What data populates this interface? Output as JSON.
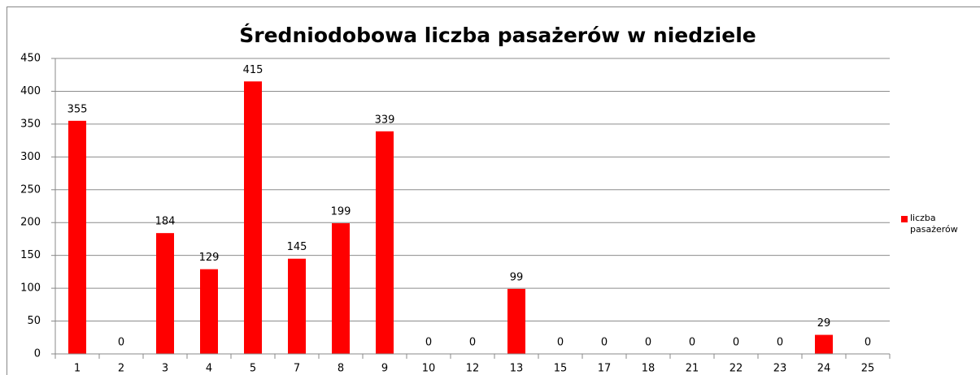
{
  "chart_data": {
    "type": "bar",
    "title": "Średniodobowa liczba pasażerów w niedziele",
    "categories": [
      "1",
      "2",
      "3",
      "4",
      "5",
      "7",
      "8",
      "9",
      "10",
      "12",
      "13",
      "15",
      "17",
      "18",
      "21",
      "22",
      "23",
      "24",
      "25"
    ],
    "series": [
      {
        "name": "liczba pasażerów",
        "color": "#ff0000",
        "values": [
          355,
          0,
          184,
          129,
          415,
          145,
          199,
          339,
          0,
          0,
          99,
          0,
          0,
          0,
          0,
          0,
          0,
          29,
          0
        ]
      }
    ],
    "ylim": [
      0,
      450
    ],
    "yticks": [
      0,
      50,
      100,
      150,
      200,
      250,
      300,
      350,
      400,
      450
    ],
    "grid": true,
    "legend": "right",
    "data_labels": true
  }
}
